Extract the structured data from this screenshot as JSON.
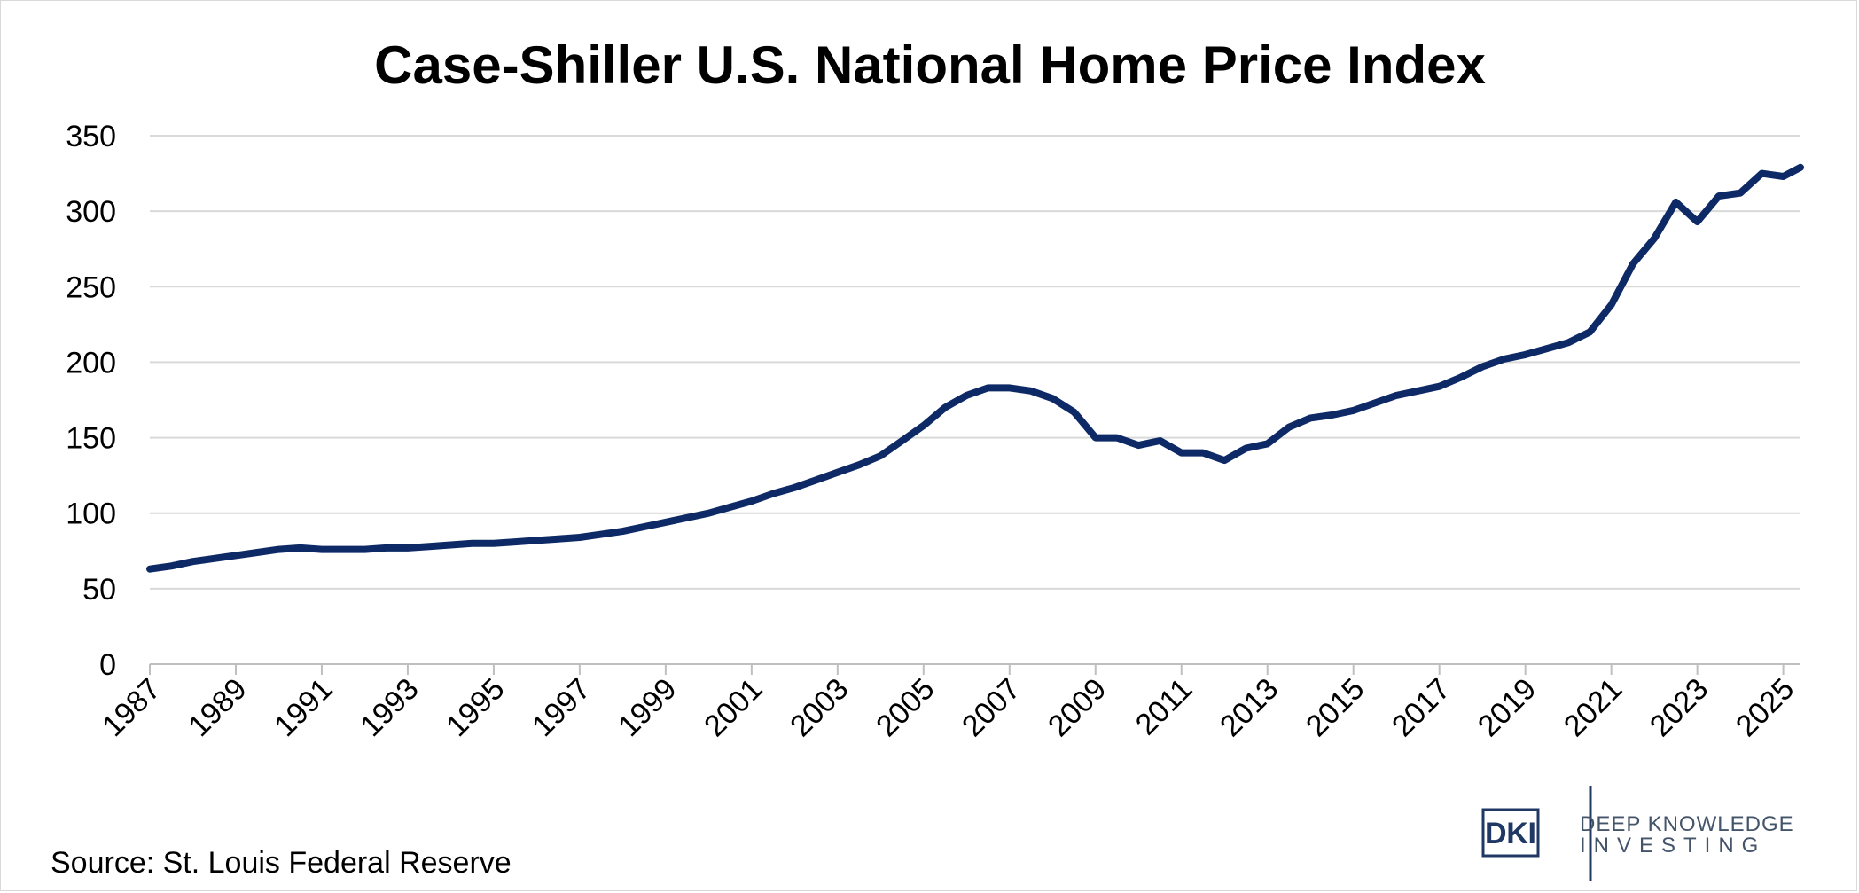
{
  "chart_data": {
    "type": "line",
    "title": "Case-Shiller U.S. National Home Price Index",
    "xlabel": "",
    "ylabel": "",
    "ylim": [
      0,
      350
    ],
    "yticks": [
      0,
      50,
      100,
      150,
      200,
      250,
      300,
      350
    ],
    "xlim": [
      1987,
      2025.4
    ],
    "xticks": [
      "1987",
      "1989",
      "1991",
      "1993",
      "1995",
      "1997",
      "1999",
      "2001",
      "2003",
      "2005",
      "2007",
      "2009",
      "2011",
      "2013",
      "2015",
      "2017",
      "2019",
      "2021",
      "2023",
      "2025"
    ],
    "grid": true,
    "legend": "none",
    "series": [
      {
        "color": "#0d2a66",
        "x": [
          1987.0,
          1987.5,
          1988.0,
          1988.5,
          1989.0,
          1989.5,
          1990.0,
          1990.5,
          1991.0,
          1991.5,
          1992.0,
          1992.5,
          1993.0,
          1993.5,
          1994.0,
          1994.5,
          1995.0,
          1995.5,
          1996.0,
          1996.5,
          1997.0,
          1997.5,
          1998.0,
          1998.5,
          1999.0,
          1999.5,
          2000.0,
          2000.5,
          2001.0,
          2001.5,
          2002.0,
          2002.5,
          2003.0,
          2003.5,
          2004.0,
          2004.5,
          2005.0,
          2005.5,
          2006.0,
          2006.5,
          2007.0,
          2007.5,
          2008.0,
          2008.5,
          2009.0,
          2009.5,
          2010.0,
          2010.5,
          2011.0,
          2011.5,
          2012.0,
          2012.5,
          2013.0,
          2013.5,
          2014.0,
          2014.5,
          2015.0,
          2015.5,
          2016.0,
          2016.5,
          2017.0,
          2017.5,
          2018.0,
          2018.5,
          2019.0,
          2019.5,
          2020.0,
          2020.5,
          2021.0,
          2021.5,
          2022.0,
          2022.5,
          2023.0,
          2023.5,
          2024.0,
          2024.5,
          2025.0,
          2025.4
        ],
        "y": [
          63,
          65,
          68,
          70,
          72,
          74,
          76,
          77,
          76,
          76,
          76,
          77,
          77,
          78,
          79,
          80,
          80,
          81,
          82,
          83,
          84,
          86,
          88,
          91,
          94,
          97,
          100,
          104,
          108,
          113,
          117,
          122,
          127,
          132,
          138,
          148,
          158,
          170,
          178,
          183,
          183,
          181,
          176,
          167,
          150,
          150,
          145,
          148,
          140,
          140,
          135,
          143,
          146,
          157,
          163,
          165,
          168,
          173,
          178,
          181,
          184,
          190,
          197,
          202,
          205,
          209,
          213,
          220,
          238,
          265,
          282,
          306,
          293,
          310,
          312,
          325,
          323,
          329
        ]
      }
    ]
  },
  "source_text": "Source: St. Louis Federal Reserve",
  "logo": {
    "mark": "DKI",
    "line1": "DEEP KNOWLEDGE",
    "line2": "INVESTING"
  }
}
